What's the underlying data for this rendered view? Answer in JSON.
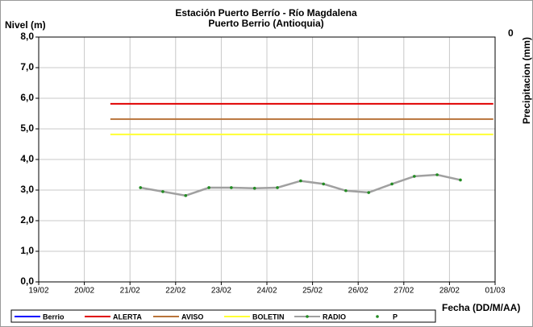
{
  "chart_data": {
    "type": "line",
    "title": "Estación Puerto Berrío - Río Magdalena",
    "subtitle": "Puerto Berrio (Antioquia)",
    "y_label": "Nivel (m)",
    "y2_label": "Precipitacion (mm)",
    "x_label": "Fecha (DD/M/AA)",
    "xlim": [
      19,
      29
    ],
    "xticks": [
      {
        "value": 19,
        "label": "19/02"
      },
      {
        "value": 20,
        "label": "20/02"
      },
      {
        "value": 21,
        "label": "21/02"
      },
      {
        "value": 22,
        "label": "22/02"
      },
      {
        "value": 23,
        "label": "23/02"
      },
      {
        "value": 24,
        "label": "24/02"
      },
      {
        "value": 25,
        "label": "25/02"
      },
      {
        "value": 26,
        "label": "26/02"
      },
      {
        "value": 27,
        "label": "27/02"
      },
      {
        "value": 28,
        "label": "28/02"
      },
      {
        "value": 29,
        "label": "01/03"
      }
    ],
    "ylim": [
      0,
      8
    ],
    "yticks": [
      {
        "value": 0,
        "label": "0,0"
      },
      {
        "value": 1,
        "label": "1,0"
      },
      {
        "value": 2,
        "label": "2,0"
      },
      {
        "value": 3,
        "label": "3,0"
      },
      {
        "value": 4,
        "label": "4,0"
      },
      {
        "value": 5,
        "label": "5,0"
      },
      {
        "value": 6,
        "label": "6,0"
      },
      {
        "value": 7,
        "label": "7,0"
      },
      {
        "value": 8,
        "label": "8,0"
      }
    ],
    "y2ticks": [
      0
    ],
    "grid": true,
    "legend": "bottom",
    "series": [
      {
        "name": "Berrio",
        "color": "#0000ff",
        "x": [],
        "values": []
      },
      {
        "name": "ALERTA",
        "color": "#e00000",
        "x": [
          20.57,
          28.96
        ],
        "values": [
          5.82,
          5.82
        ]
      },
      {
        "name": "AVISO",
        "color": "#b8733a",
        "x": [
          20.57,
          28.96
        ],
        "values": [
          5.32,
          5.32
        ]
      },
      {
        "name": "BOLETIN",
        "color": "#ffff33",
        "x": [
          20.57,
          28.96
        ],
        "values": [
          4.82,
          4.82
        ]
      },
      {
        "name": "RADIO",
        "color": "#a0a0a0",
        "marker_color": "#228b22",
        "x": [
          21.23,
          21.72,
          22.22,
          22.73,
          23.22,
          23.73,
          24.23,
          24.74,
          25.24,
          25.73,
          26.23,
          26.74,
          27.23,
          27.73,
          28.24
        ],
        "values": [
          3.08,
          2.95,
          2.82,
          3.08,
          3.08,
          3.06,
          3.08,
          3.3,
          3.2,
          2.98,
          2.92,
          3.2,
          3.45,
          3.5,
          3.33
        ]
      },
      {
        "name": "P",
        "color": "#228b22",
        "x": [],
        "values": []
      }
    ]
  }
}
